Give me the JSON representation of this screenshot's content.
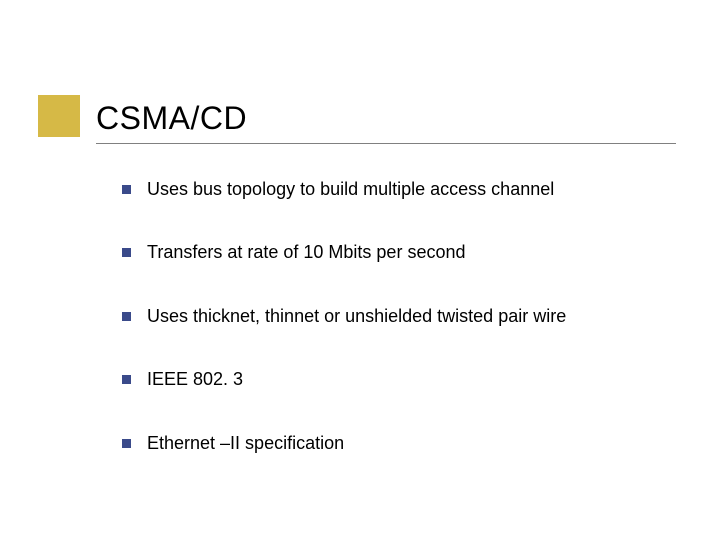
{
  "slide": {
    "title": "CSMA/CD",
    "accent_color": "#d6b946",
    "bullet_color": "#3a4a8a",
    "title_fontsize": 32,
    "bullet_fontsize": 18,
    "background_color": "#ffffff",
    "underline_color": "#808080",
    "bullets": [
      "Uses bus topology to build multiple access channel",
      "Transfers at rate of 10 Mbits per second",
      "Uses thicknet, thinnet or unshielded twisted pair wire",
      "IEEE 802. 3",
      "Ethernet –II specification"
    ]
  }
}
